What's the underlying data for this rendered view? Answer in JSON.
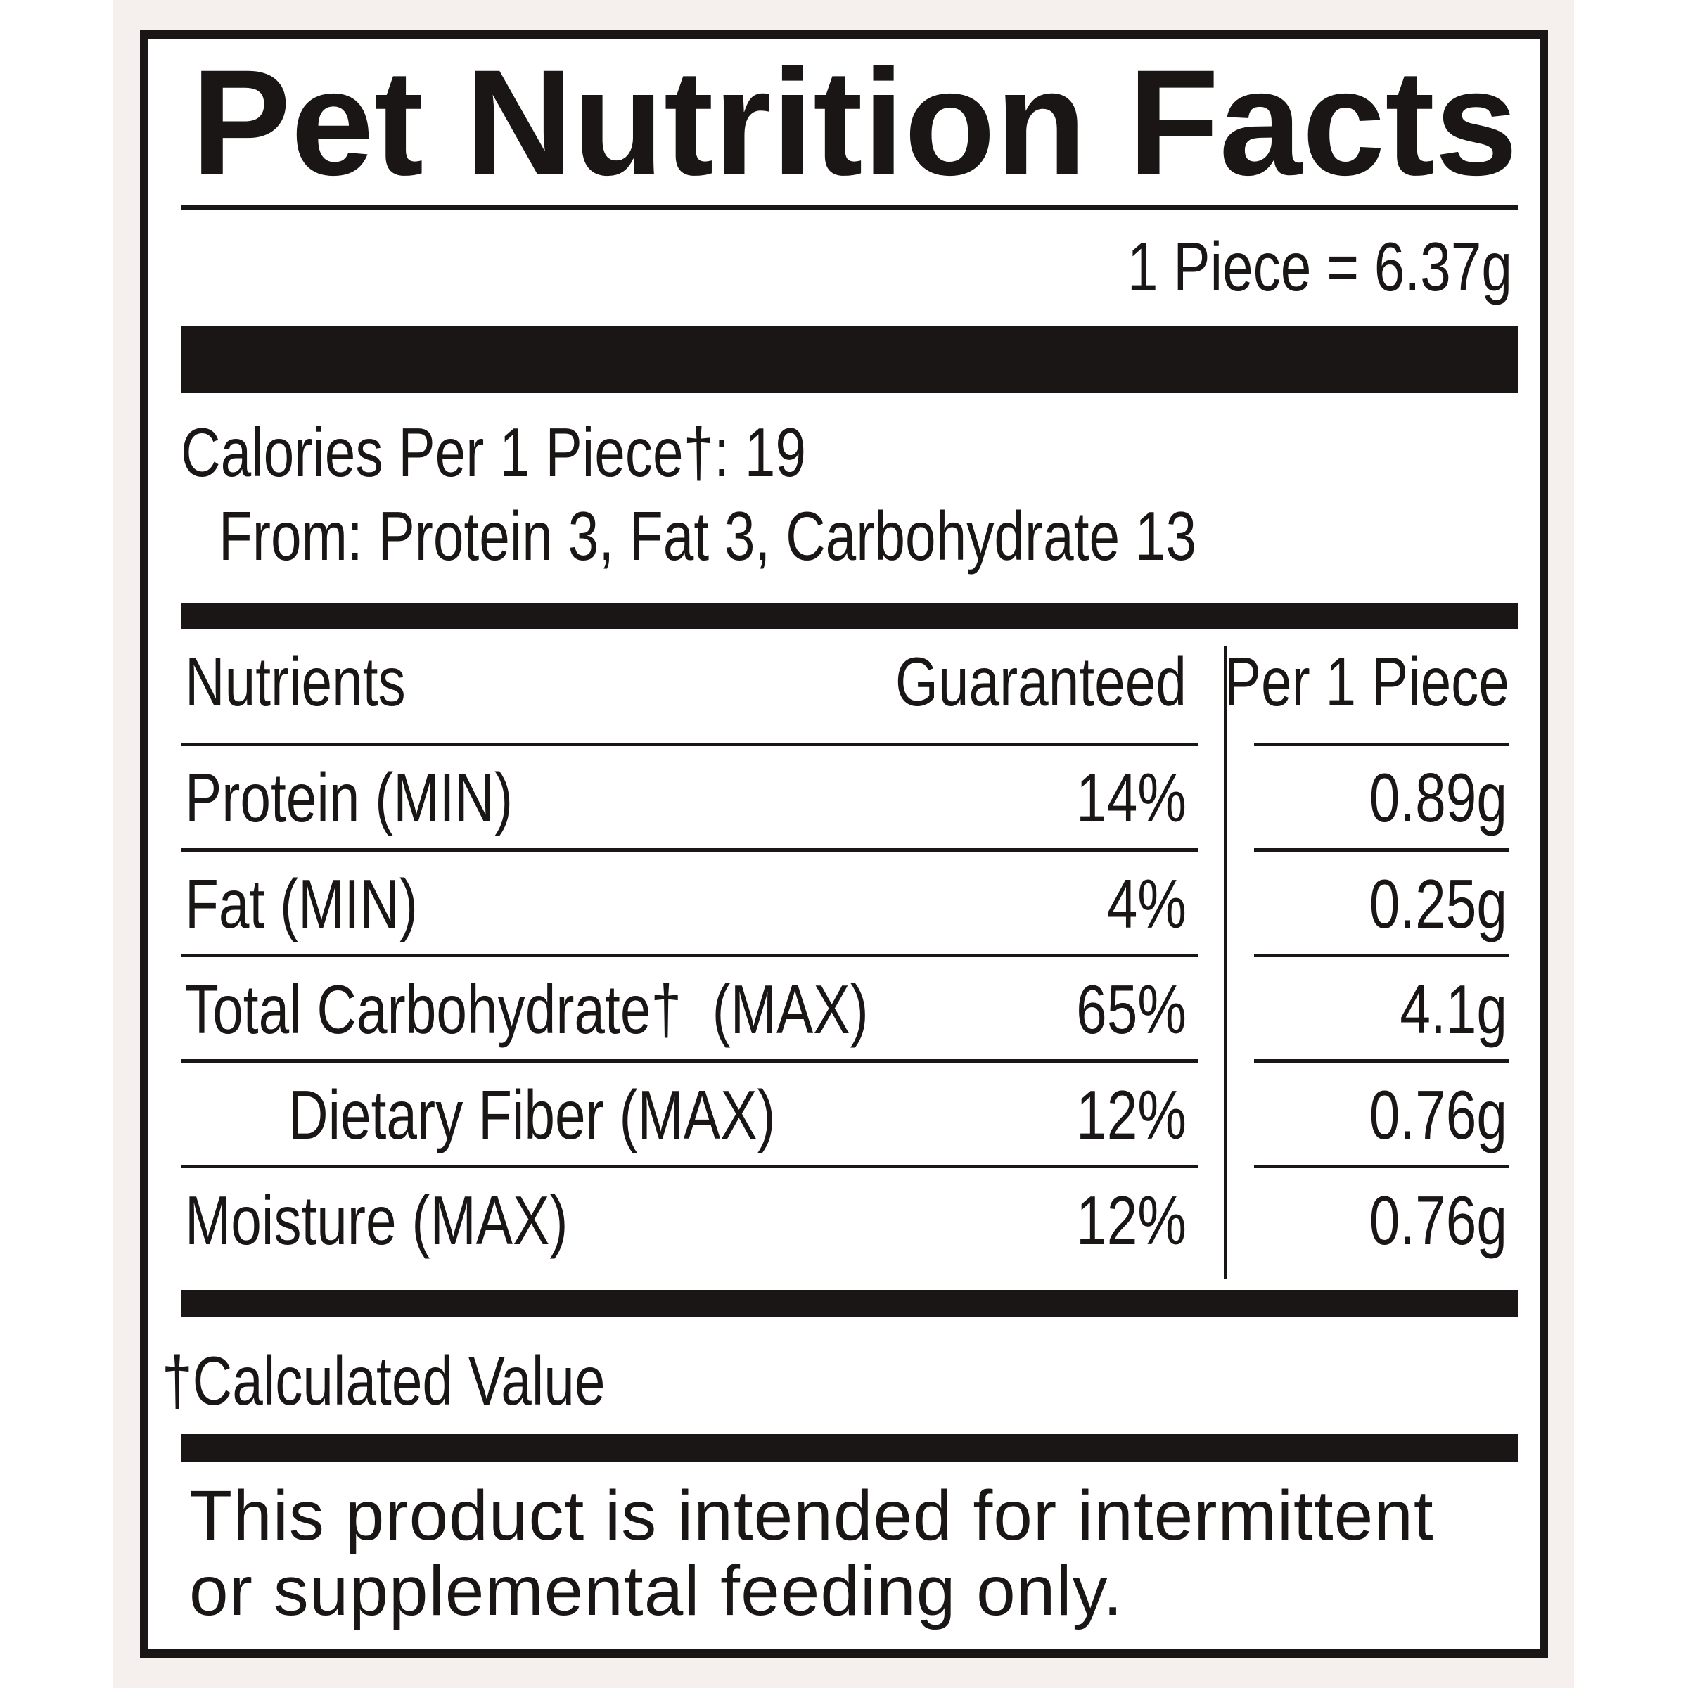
{
  "header": {
    "title": "Pet Nutrition Facts",
    "serving": "1 Piece = 6.37g"
  },
  "calories": {
    "line": "Calories Per 1 Piece†: 19",
    "from": "From: Protein 3, Fat 3, Carbohydrate 13"
  },
  "table": {
    "headers": [
      "Nutrients",
      "Guaranteed",
      "Per 1 Piece"
    ],
    "rows": [
      [
        "Protein (MIN)",
        "14%",
        "0.89g"
      ],
      [
        "Fat (MIN)",
        "4%",
        "0.25g"
      ],
      [
        "Total Carbohydrate†  (MAX)",
        "65%",
        "4.1g"
      ],
      [
        "Dietary Fiber (MAX)",
        "12%",
        "0.76g"
      ],
      [
        "Moisture (MAX)",
        "12%",
        "0.76g"
      ]
    ]
  },
  "footnote": "†Calculated Value",
  "disclaimer": [
    "This product is intended for intermittent",
    "or supplemental feeding only."
  ]
}
